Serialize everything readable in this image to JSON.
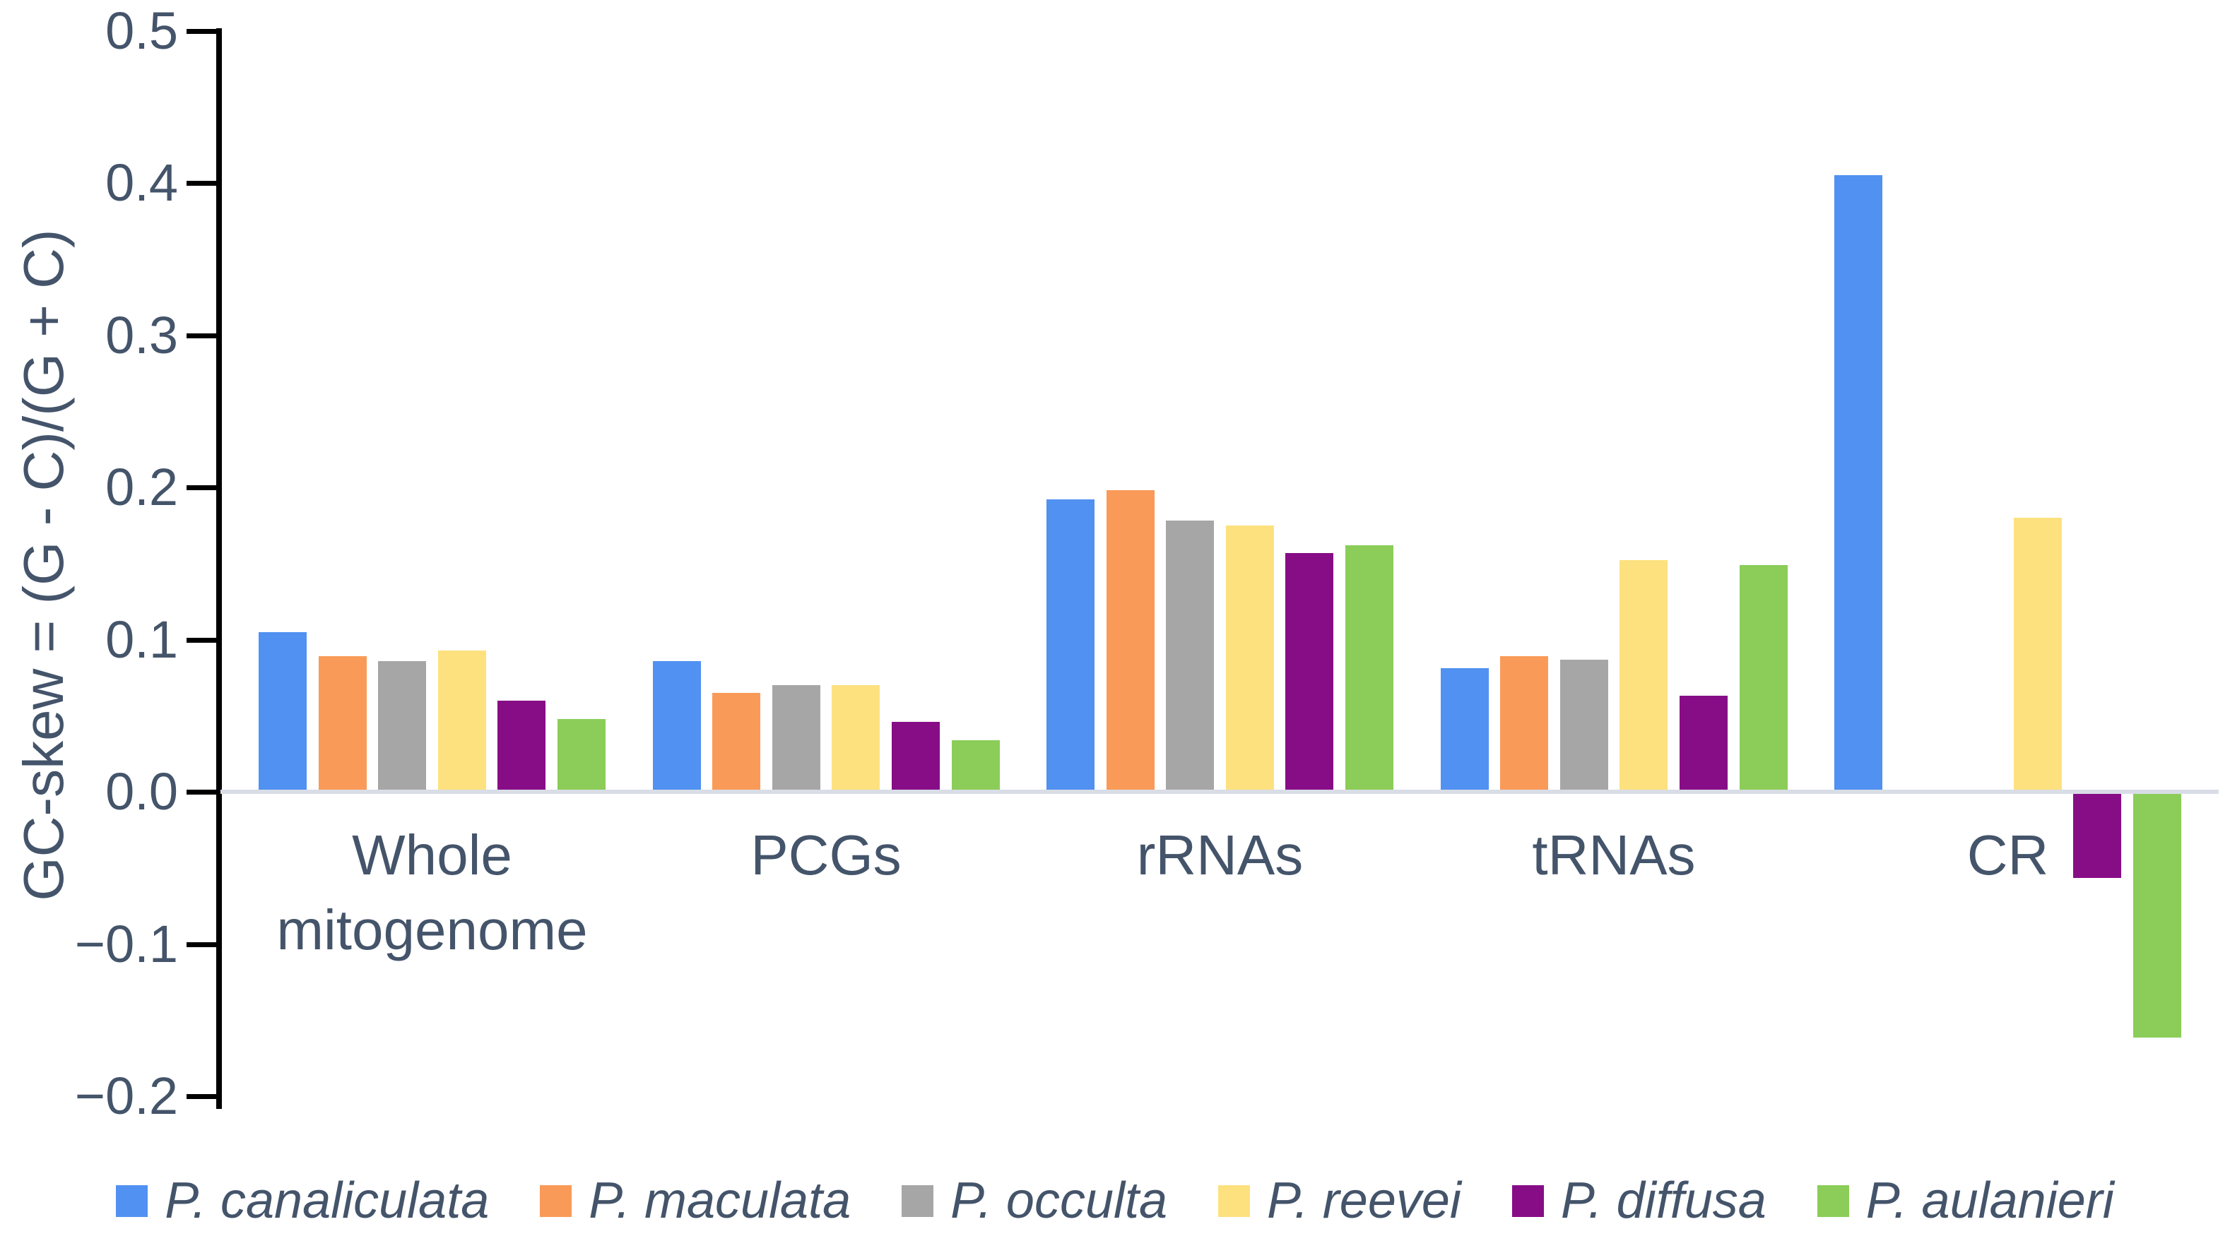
{
  "chart_data": {
    "type": "bar",
    "title": "",
    "ylabel": "GC-skew = (G - C)/(G + C)",
    "xlabel": "",
    "categories": [
      "Whole mitogenome",
      "PCGs",
      "rRNAs",
      "tRNAs",
      "CR"
    ],
    "series": [
      {
        "name": "P. canaliculata",
        "color": "#5191f1",
        "values": [
          0.105,
          0.086,
          0.192,
          0.081,
          0.405
        ]
      },
      {
        "name": "P. maculata",
        "color": "#fa9a58",
        "values": [
          0.089,
          0.065,
          0.198,
          0.089,
          null
        ]
      },
      {
        "name": "P. occulta",
        "color": "#a6a6a6",
        "values": [
          0.086,
          0.07,
          0.178,
          0.087,
          null
        ]
      },
      {
        "name": "P. reevei",
        "color": "#fde17f",
        "values": [
          0.093,
          0.07,
          0.175,
          0.152,
          0.18
        ]
      },
      {
        "name": "P. diffusa",
        "color": "#870d87",
        "values": [
          0.06,
          0.046,
          0.157,
          0.063,
          -0.055
        ]
      },
      {
        "name": "P. aulanieri",
        "color": "#8bcd58",
        "values": [
          0.048,
          0.034,
          0.162,
          0.149,
          -0.16
        ]
      }
    ],
    "y_ticks": [
      0.5,
      0.4,
      0.3,
      0.2,
      0.1,
      0.0,
      -0.1,
      -0.2
    ],
    "ylim": [
      -0.2,
      0.5
    ],
    "grid": false,
    "legend_position": "bottom",
    "minus_glyph": "−",
    "text_color": "#44546a",
    "axis_line_color": "#000000",
    "baseline_color": "#d9dde6"
  }
}
